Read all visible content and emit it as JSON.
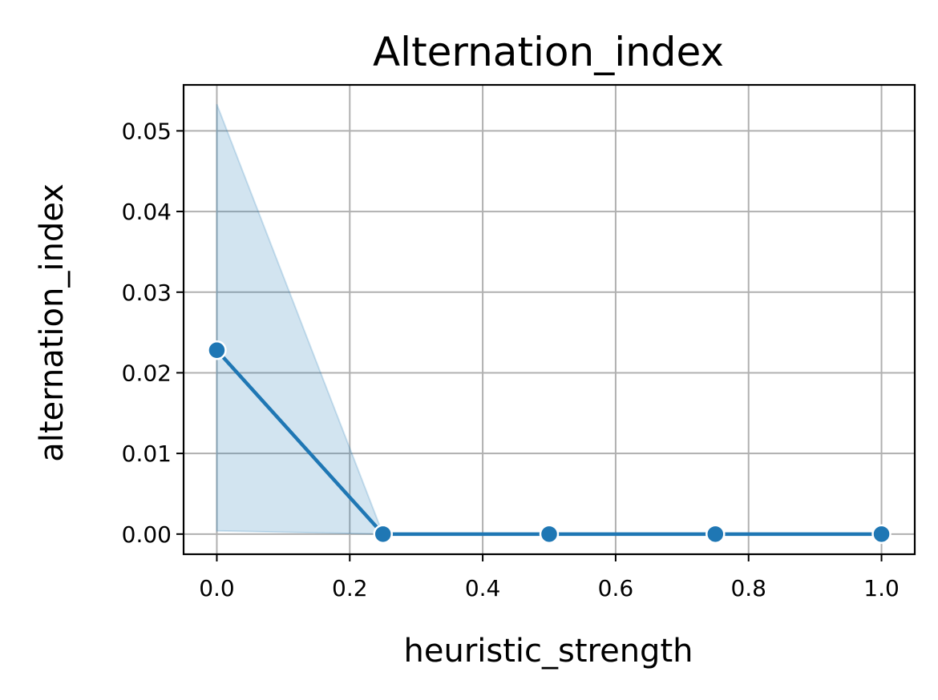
{
  "chart_data": {
    "type": "line",
    "title": "Alternation_index",
    "xlabel": "heuristic_strength",
    "ylabel": "alternation_index",
    "x": [
      0.0,
      0.25,
      0.5,
      0.75,
      1.0
    ],
    "series": [
      {
        "values": [
          0.0228,
          0.0,
          0.0,
          0.0,
          0.0
        ],
        "ci_lower": [
          0.0004,
          0.0,
          0.0,
          0.0,
          0.0
        ],
        "ci_upper": [
          0.0533,
          0.0,
          0.0,
          0.0,
          0.0
        ],
        "color": "#1f77b4",
        "band_color": "#1f77b4",
        "marker": "circle"
      }
    ],
    "xlim": [
      -0.05,
      1.05
    ],
    "ylim": [
      -0.0025,
      0.0557
    ],
    "xticks": [
      0.0,
      0.2,
      0.4,
      0.6,
      0.8,
      1.0
    ],
    "xtick_labels": [
      "0.0",
      "0.2",
      "0.4",
      "0.6",
      "0.8",
      "1.0"
    ],
    "yticks": [
      0.0,
      0.01,
      0.02,
      0.03,
      0.04,
      0.05
    ],
    "ytick_labels": [
      "0.00",
      "0.01",
      "0.02",
      "0.03",
      "0.04",
      "0.05"
    ],
    "grid": true,
    "grid_color": "#b0b0b0"
  }
}
